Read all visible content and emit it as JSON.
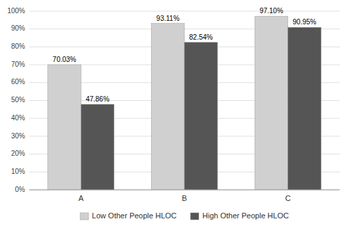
{
  "chart_data": {
    "type": "bar",
    "categories": [
      "A",
      "B",
      "C"
    ],
    "series": [
      {
        "name": "Low Other People HLOC",
        "color": "#d0d0d0",
        "values": [
          70.03,
          93.11,
          97.1
        ],
        "value_labels": [
          "70.03%",
          "93.11%",
          "97.10%"
        ]
      },
      {
        "name": "High Other People HLOC",
        "color": "#555555",
        "values": [
          47.86,
          82.54,
          90.95
        ],
        "value_labels": [
          "47.86%",
          "82.54%",
          "90.95%"
        ]
      }
    ],
    "ylim": [
      0,
      100
    ],
    "yticks": [
      {
        "value": 0,
        "label": "0%"
      },
      {
        "value": 10,
        "label": "10%"
      },
      {
        "value": 20,
        "label": "20%"
      },
      {
        "value": 30,
        "label": "30%"
      },
      {
        "value": 40,
        "label": "40%"
      },
      {
        "value": 50,
        "label": "50%"
      },
      {
        "value": 60,
        "label": "60%"
      },
      {
        "value": 70,
        "label": "70%"
      },
      {
        "value": 80,
        "label": "80%"
      },
      {
        "value": 90,
        "label": "90%"
      },
      {
        "value": 100,
        "label": "100%"
      }
    ],
    "grid": true,
    "legend": "bottom",
    "data_labels": true
  }
}
